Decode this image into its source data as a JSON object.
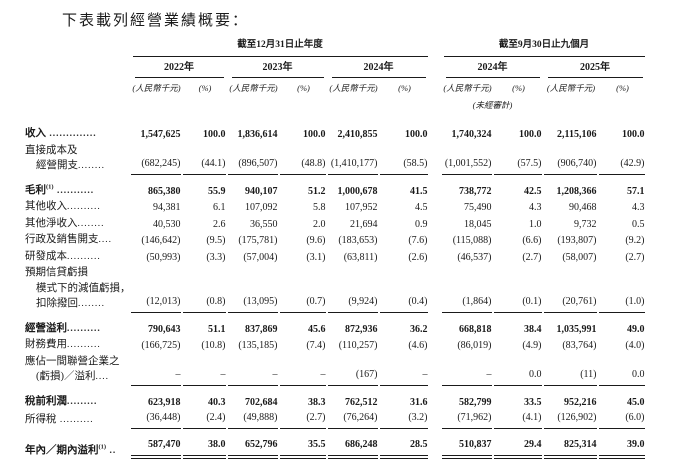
{
  "page": {
    "title": "下表載列經營業績概要："
  },
  "table": {
    "group1": {
      "title": "截至12月31日止年度"
    },
    "group2": {
      "title": "截至9月30日止九個月"
    },
    "cols": [
      {
        "year": "2022年",
        "unit": "(人民幣千元)",
        "pct": "(%)"
      },
      {
        "year": "2023年",
        "unit": "(人民幣千元)",
        "pct": "(%)"
      },
      {
        "year": "2024年",
        "unit": "(人民幣千元)",
        "pct": "(%)"
      },
      {
        "year": "2024年",
        "unit": "(人民幣千元)",
        "pct": "(%)",
        "note": "(未經審計)"
      },
      {
        "year": "2025年",
        "unit": "(人民幣千元)",
        "pct": "(%)"
      }
    ],
    "rows": [
      {
        "lines": [
          {
            "t": "收入",
            "d": " .............."
          }
        ],
        "bold": true,
        "cells": [
          "1,547,625",
          "100.0",
          "1,836,614",
          "100.0",
          "2,410,855",
          "100.0",
          "1,740,324",
          "100.0",
          "2,115,106",
          "100.0"
        ]
      },
      {
        "lines": [
          {
            "t": "直接成本及"
          },
          {
            "t": "經營開支",
            "d": "........"
          }
        ],
        "rule": "single",
        "cells": [
          "(682,245)",
          "(44.1)",
          "(896,507)",
          "(48.8)",
          "(1,410,177)",
          "(58.5)",
          "(1,001,552)",
          "(57.5)",
          "(906,740)",
          "(42.9)"
        ]
      },
      {
        "lines": [
          {
            "t": "毛利",
            "sup": "(1)",
            "d": " ..........."
          }
        ],
        "bold": true,
        "gap": true,
        "cells": [
          "865,380",
          "55.9",
          "940,107",
          "51.2",
          "1,000,678",
          "41.5",
          "738,772",
          "42.5",
          "1,208,366",
          "57.1"
        ]
      },
      {
        "lines": [
          {
            "t": "其他收入",
            "d": ".........."
          }
        ],
        "cells": [
          "94,381",
          "6.1",
          "107,092",
          "5.8",
          "107,952",
          "4.5",
          "75,490",
          "4.3",
          "90,468",
          "4.3"
        ]
      },
      {
        "lines": [
          {
            "t": "其他淨收入",
            "d": "........"
          }
        ],
        "cells": [
          "40,530",
          "2.6",
          "36,550",
          "2.0",
          "21,694",
          "0.9",
          "18,045",
          "1.0",
          "9,732",
          "0.5"
        ]
      },
      {
        "lines": [
          {
            "t": "行政及銷售開支",
            "d": "...."
          }
        ],
        "cells": [
          "(146,642)",
          "(9.5)",
          "(175,781)",
          "(9.6)",
          "(183,653)",
          "(7.6)",
          "(115,088)",
          "(6.6)",
          "(193,807)",
          "(9.2)"
        ]
      },
      {
        "lines": [
          {
            "t": "研發成本",
            "d": ".........."
          }
        ],
        "cells": [
          "(50,993)",
          "(3.3)",
          "(57,004)",
          "(3.1)",
          "(63,811)",
          "(2.6)",
          "(46,537)",
          "(2.7)",
          "(58,007)",
          "(2.7)"
        ]
      },
      {
        "lines": [
          {
            "t": "預期信貸虧損"
          },
          {
            "t": "模式下的減值虧損，"
          },
          {
            "t": "扣除撥回",
            "d": "........"
          }
        ],
        "rule": "single",
        "cells": [
          "(12,013)",
          "(0.8)",
          "(13,095)",
          "(0.7)",
          "(9,924)",
          "(0.4)",
          "(1,864)",
          "(0.1)",
          "(20,761)",
          "(1.0)"
        ]
      },
      {
        "lines": [
          {
            "t": "經營溢利",
            "d": ".........."
          }
        ],
        "bold": true,
        "gap": true,
        "cells": [
          "790,643",
          "51.1",
          "837,869",
          "45.6",
          "872,936",
          "36.2",
          "668,818",
          "38.4",
          "1,035,991",
          "49.0"
        ]
      },
      {
        "lines": [
          {
            "t": "財務費用",
            "d": ".........."
          }
        ],
        "cells": [
          "(166,725)",
          "(10.8)",
          "(135,185)",
          "(7.4)",
          "(110,257)",
          "(4.6)",
          "(86,019)",
          "(4.9)",
          "(83,764)",
          "(4.0)"
        ]
      },
      {
        "lines": [
          {
            "t": "應佔一間聯營企業之"
          },
          {
            "t": "(虧損)／溢利",
            "d": "...."
          }
        ],
        "rule": "single",
        "cells": [
          "–",
          "–",
          "–",
          "–",
          "(167)",
          "–",
          "–",
          "0.0",
          "(11)",
          "0.0"
        ]
      },
      {
        "lines": [
          {
            "t": "稅前利潤",
            "d": "........."
          }
        ],
        "bold": true,
        "gap": true,
        "cells": [
          "623,918",
          "40.3",
          "702,684",
          "38.3",
          "762,512",
          "31.6",
          "582,799",
          "33.5",
          "952,216",
          "45.0"
        ]
      },
      {
        "lines": [
          {
            "t": "所得稅",
            "d": " .........."
          }
        ],
        "rule": "single",
        "cells": [
          "(36,448)",
          "(2.4)",
          "(49,888)",
          "(2.7)",
          "(76,264)",
          "(3.2)",
          "(71,962)",
          "(4.1)",
          "(126,902)",
          "(6.0)"
        ]
      },
      {
        "lines": [
          {
            "t": "年內／期內溢利",
            "sup": "(1)",
            "d": " .."
          }
        ],
        "bold": true,
        "gap": true,
        "rule": "double",
        "cells": [
          "587,470",
          "38.0",
          "652,796",
          "35.5",
          "686,248",
          "28.5",
          "510,837",
          "29.4",
          "825,314",
          "39.0"
        ]
      }
    ]
  }
}
